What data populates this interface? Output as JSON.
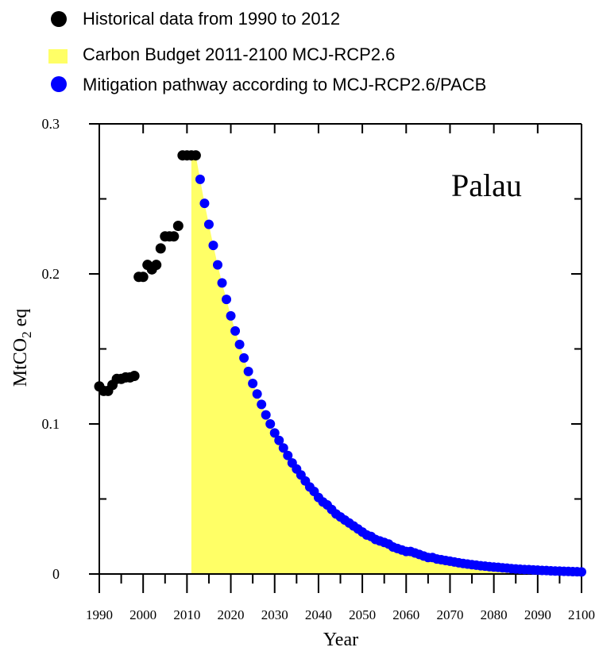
{
  "chart_data": {
    "type": "scatter",
    "country_label": "Palau",
    "xlabel": "Year",
    "ylabel": {
      "main": "MtCO",
      "sub": "2",
      "suffix": " eq"
    },
    "xlim": [
      1990,
      2100
    ],
    "ylim": [
      0,
      0.3
    ],
    "x_ticks": [
      1990,
      2000,
      2010,
      2020,
      2030,
      2040,
      2050,
      2060,
      2070,
      2080,
      2090,
      2100
    ],
    "x_tick_labels": [
      "1990",
      "2000",
      "2010",
      "2020",
      "2030",
      "2040",
      "2050",
      "2060",
      "2070",
      "2080",
      "2090",
      "2100"
    ],
    "y_ticks": [
      0,
      0.1,
      0.2,
      0.3
    ],
    "y_tick_labels": [
      "0",
      "0.1",
      "0.2",
      "0.3"
    ],
    "grid": false,
    "legend_position": "top-left, above plot",
    "colors": {
      "historical": "#000000",
      "budget": "#ffff66",
      "pathway": "#0000ff",
      "axis": "#000000"
    },
    "series": [
      {
        "name": "Historical data from 1990 to 2012",
        "marker": "circle",
        "x": [
          1990,
          1991,
          1992,
          1993,
          1994,
          1995,
          1996,
          1997,
          1998,
          1999,
          2000,
          2001,
          2002,
          2003,
          2004,
          2005,
          2006,
          2007,
          2008,
          2009,
          2010,
          2011,
          2012
        ],
        "y": [
          0.125,
          0.122,
          0.122,
          0.126,
          0.13,
          0.13,
          0.131,
          0.131,
          0.132,
          0.198,
          0.198,
          0.206,
          0.203,
          0.206,
          0.217,
          0.225,
          0.225,
          0.225,
          0.232,
          0.279,
          0.279,
          0.279,
          0.279
        ]
      },
      {
        "name": "Carbon Budget 2011-2100 MCJ-RCP2.6",
        "marker": "area",
        "x_start": 2011,
        "x_end": 2100
      },
      {
        "name": "Mitigation pathway according to MCJ-RCP2.6/PACB",
        "marker": "circle",
        "x_start": 2013,
        "x_end": 2100,
        "y": [
          0.263,
          0.247,
          0.233,
          0.219,
          0.206,
          0.194,
          0.183,
          0.172,
          0.162,
          0.153,
          0.144,
          0.135,
          0.127,
          0.12,
          0.113,
          0.106,
          0.1,
          0.094,
          0.089,
          0.084,
          0.079,
          0.074,
          0.07,
          0.066,
          0.062,
          0.058,
          0.055,
          0.051,
          0.048,
          0.046,
          0.043,
          0.04,
          0.038,
          0.036,
          0.034,
          0.032,
          0.03,
          0.028,
          0.026,
          0.025,
          0.023,
          0.022,
          0.021,
          0.02,
          0.018,
          0.017,
          0.016,
          0.015,
          0.015,
          0.014,
          0.013,
          0.012,
          0.011,
          0.011,
          0.01,
          0.0095,
          0.009,
          0.0085,
          0.008,
          0.0075,
          0.007,
          0.0066,
          0.0062,
          0.0059,
          0.0055,
          0.0052,
          0.0049,
          0.0046,
          0.0044,
          0.0041,
          0.0039,
          0.0036,
          0.0034,
          0.0032,
          0.003,
          0.0029,
          0.0027,
          0.0026,
          0.0024,
          0.0023,
          0.0021,
          0.002,
          0.0019,
          0.0018,
          0.0017,
          0.0016,
          0.0015,
          0.0014
        ]
      }
    ]
  }
}
